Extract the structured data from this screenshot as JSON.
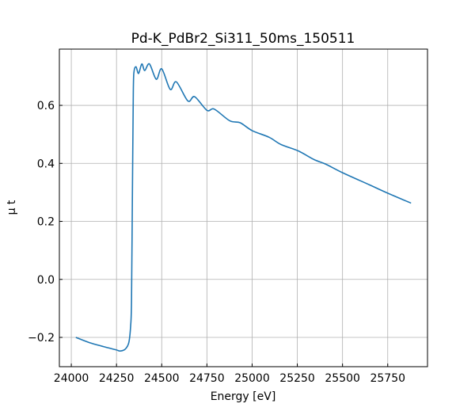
{
  "chart_data": {
    "type": "line",
    "title": "Pd-K_PdBr2_Si311_50ms_150511",
    "xlabel": "Energy [eV]",
    "ylabel": "μ t",
    "xlim": [
      23934,
      25970
    ],
    "ylim": [
      -0.301,
      0.794
    ],
    "xticks": [
      24000,
      24250,
      24500,
      24750,
      25000,
      25250,
      25500,
      25750
    ],
    "yticks": [
      -0.2,
      0.0,
      0.2,
      0.4,
      0.6
    ],
    "ytick_labels": [
      "−0.2",
      "0.0",
      "0.2",
      "0.4",
      "0.6"
    ],
    "grid": true,
    "line_color": "#1f77b4",
    "series": [
      {
        "name": "mu",
        "x": [
          24025,
          24100,
          24180,
          24248,
          24270,
          24299,
          24318,
          24328,
          24333,
          24338,
          24343,
          24347,
          24358,
          24372,
          24390,
          24406,
          24432,
          24470,
          24500,
          24547,
          24581,
          24645,
          24682,
          24750,
          24791,
          24876,
          24934,
          25000,
          25094,
          25160,
          25255,
          25343,
          25408,
          25503,
          25649,
          25751,
          25879
        ],
        "y": [
          -0.2,
          -0.218,
          -0.232,
          -0.243,
          -0.247,
          -0.24,
          -0.218,
          -0.162,
          -0.072,
          0.3,
          0.65,
          0.717,
          0.733,
          0.71,
          0.743,
          0.72,
          0.743,
          0.69,
          0.726,
          0.655,
          0.681,
          0.615,
          0.63,
          0.583,
          0.587,
          0.547,
          0.54,
          0.513,
          0.49,
          0.465,
          0.443,
          0.413,
          0.397,
          0.367,
          0.326,
          0.297,
          0.263
        ]
      }
    ]
  }
}
